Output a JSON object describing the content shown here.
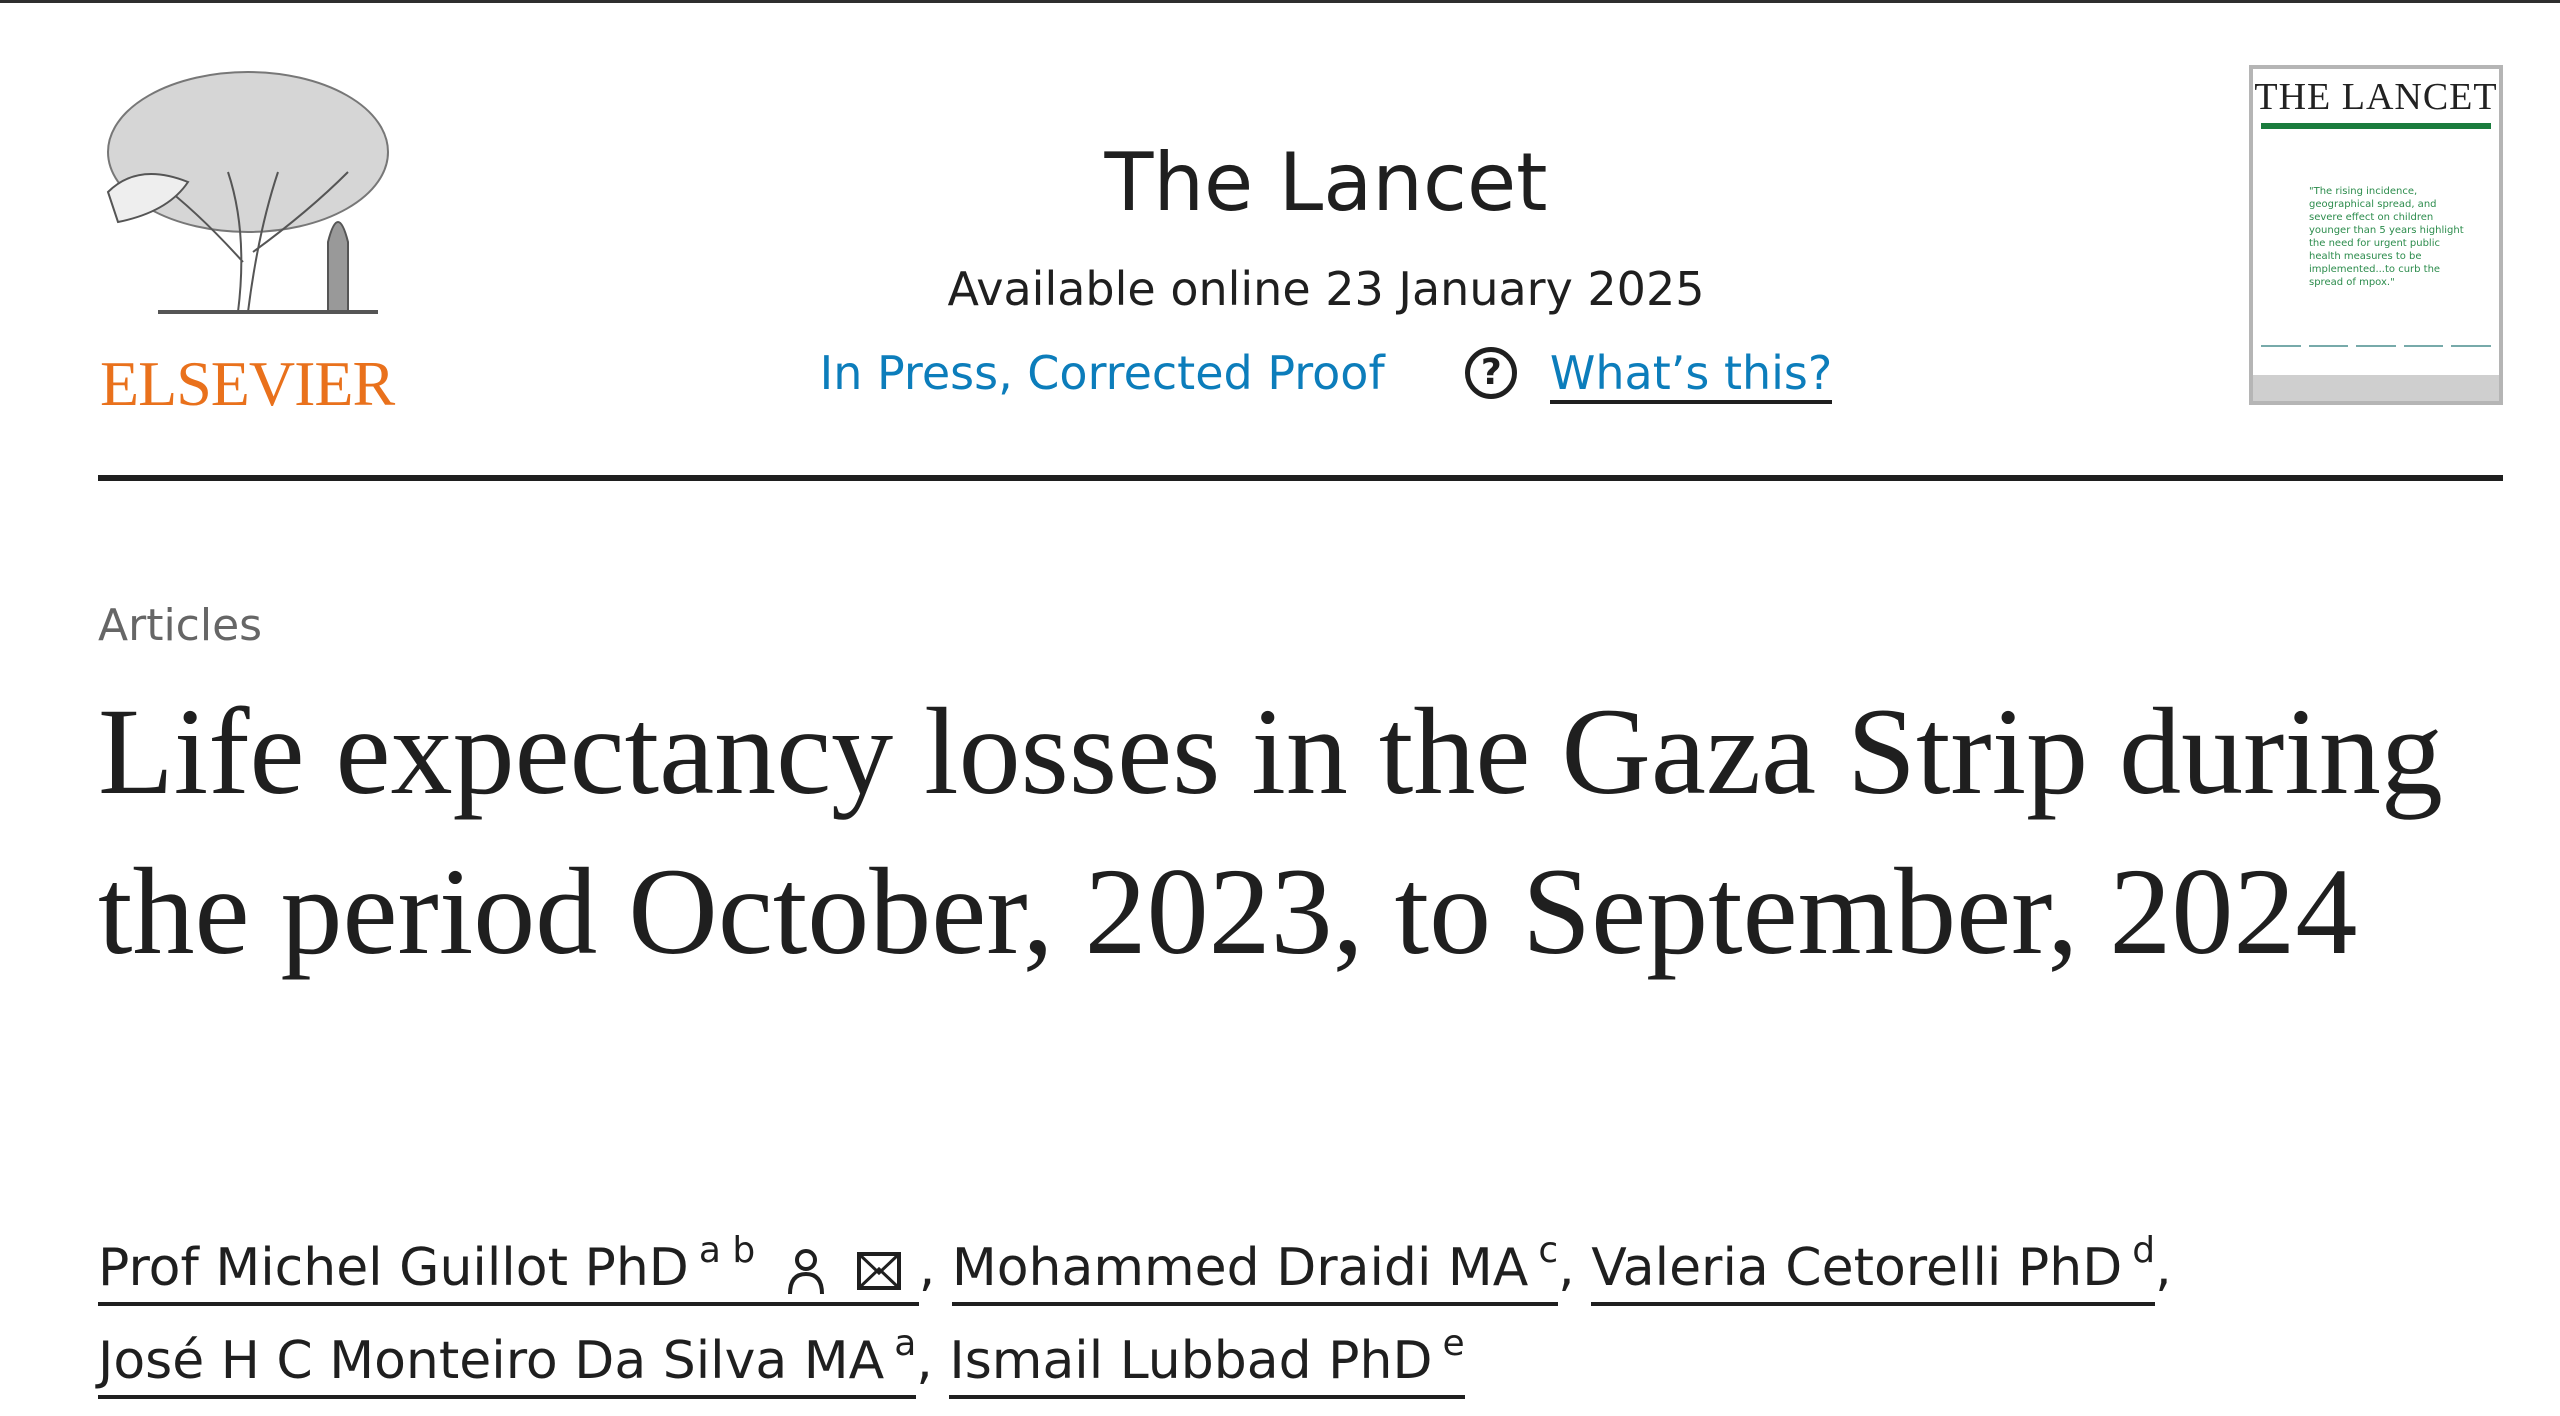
{
  "header": {
    "publisher": "ELSEVIER",
    "journal": "The Lancet",
    "available": "Available online 23 January 2025",
    "status_link": "In Press, Corrected Proof",
    "help_icon": "question-circle-icon",
    "whats_this": "What’s this?",
    "cover_title": "THE LANCET",
    "cover_quote": "\"The rising incidence, geographical spread, and severe effect on children younger than 5 years highlight the need for urgent public health measures to be implemented...to curb the spread of mpox.\""
  },
  "article": {
    "type": "Articles",
    "title": "Life expectancy losses in the Gaza Strip during the period October, 2023, to September, 2024",
    "authors": [
      {
        "name": "Prof Michel Guillot PhD",
        "aff": "a b"
      },
      {
        "name": "Mohammed Draidi MA",
        "aff": "c"
      },
      {
        "name": "Valeria Cetorelli PhD",
        "aff": "d"
      },
      {
        "name": "José H C Monteiro Da Silva MA",
        "aff": "a"
      },
      {
        "name": "Ismail Lubbad PhD",
        "aff": "e"
      }
    ],
    "sep": ","
  },
  "colors": {
    "brand": "#e9711c",
    "link": "#0c7dbb",
    "cover_green": "#1a7c3d"
  }
}
